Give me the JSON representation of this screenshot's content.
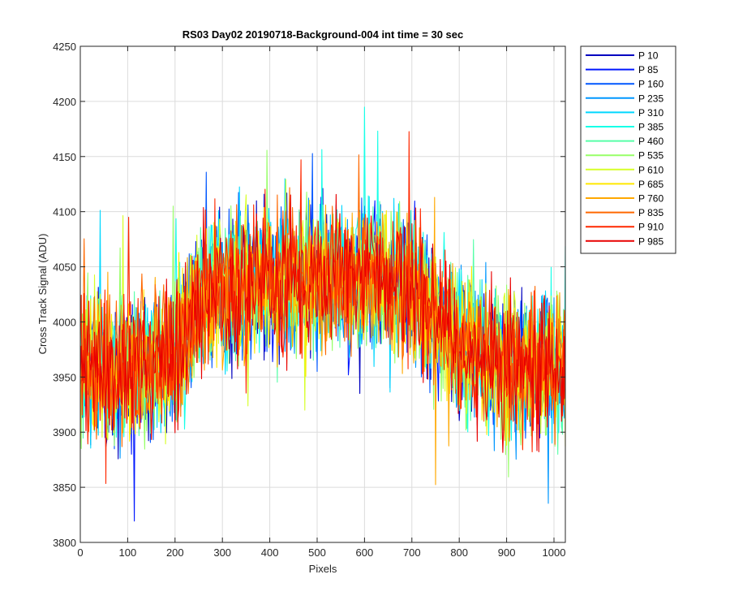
{
  "chart_data": {
    "type": "line",
    "title": "RS03 Day02 20190718-Background-004 int time = 30 sec",
    "xlabel": "Pixels",
    "ylabel": "Cross Track Signal (ADU)",
    "xlim": [
      0,
      1024
    ],
    "ylim": [
      3800,
      4250
    ],
    "xticks": [
      0,
      100,
      200,
      300,
      400,
      500,
      600,
      700,
      800,
      900,
      1000
    ],
    "yticks": [
      3800,
      3850,
      3900,
      3950,
      4000,
      4050,
      4100,
      4150,
      4200,
      4250
    ],
    "grid": true,
    "legend_location": "outside right, top",
    "colormap": "jet",
    "x_samples": [
      0,
      100,
      200,
      250,
      300,
      400,
      500,
      600,
      700,
      750,
      800,
      900,
      1024
    ],
    "mean_profile": [
      3958,
      3958,
      3972,
      4020,
      4030,
      4038,
      4042,
      4040,
      4033,
      4005,
      3978,
      3962,
      3960
    ],
    "noise_amplitude_adu": 65,
    "series": [
      {
        "name": "P 10",
        "color": "#0000c0"
      },
      {
        "name": "P 85",
        "color": "#0017ff"
      },
      {
        "name": "P 160",
        "color": "#0057ff"
      },
      {
        "name": "P 235",
        "color": "#0097ff"
      },
      {
        "name": "P 310",
        "color": "#00d7ff"
      },
      {
        "name": "P 385",
        "color": "#17ffe8"
      },
      {
        "name": "P 460",
        "color": "#57ffa8"
      },
      {
        "name": "P 535",
        "color": "#97ff68"
      },
      {
        "name": "P 610",
        "color": "#d7ff28"
      },
      {
        "name": "P 685",
        "color": "#ffe800"
      },
      {
        "name": "P 760",
        "color": "#ffa800"
      },
      {
        "name": "P 835",
        "color": "#ff6800"
      },
      {
        "name": "P 910",
        "color": "#ff2800"
      },
      {
        "name": "P 985",
        "color": "#e80000"
      }
    ]
  }
}
